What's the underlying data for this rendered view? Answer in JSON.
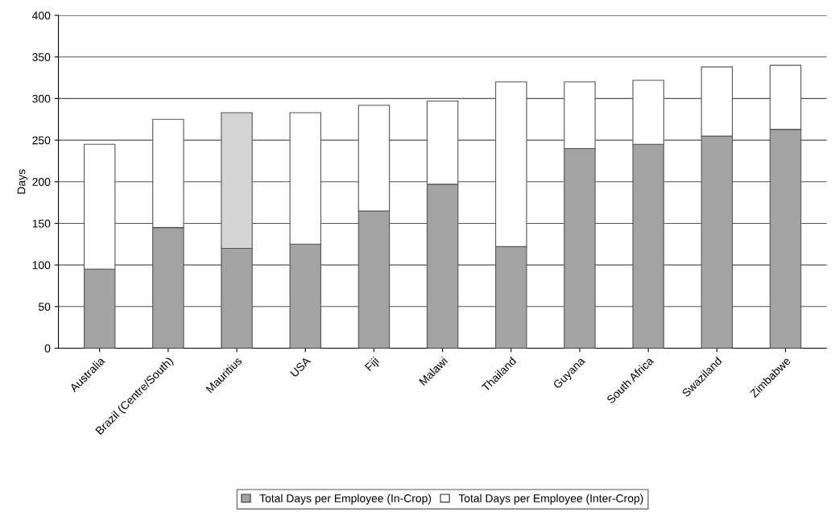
{
  "chart_data": {
    "type": "bar",
    "stacked": true,
    "ylabel": "Days",
    "categories": [
      "Australia",
      "Brazil (Centre/South)",
      "Mauritius",
      "USA",
      "Fiji",
      "Malawi",
      "Thailand",
      "Guyana",
      "South Africa",
      "Swaziland",
      "Zimbabwe"
    ],
    "series": [
      {
        "name": "Total Days per Employee (In-Crop)",
        "color": "#a3a3a3",
        "values": [
          95,
          145,
          120,
          125,
          165,
          197,
          122,
          240,
          245,
          255,
          263
        ]
      },
      {
        "name": "Total Days per Employee (Inter-Crop)",
        "color": "#ffffff",
        "colors": [
          "#ffffff",
          "#ffffff",
          "#d4d4d4",
          "#ffffff",
          "#ffffff",
          "#ffffff",
          "#ffffff",
          "#ffffff",
          "#ffffff",
          "#ffffff",
          "#ffffff"
        ],
        "values": [
          150,
          130,
          163,
          158,
          127,
          100,
          198,
          80,
          77,
          83,
          77
        ]
      }
    ],
    "ylim": [
      0,
      400
    ],
    "yticks": [
      0,
      50,
      100,
      150,
      200,
      250,
      300,
      350,
      400
    ],
    "grid": "y",
    "legend": "bottom"
  }
}
